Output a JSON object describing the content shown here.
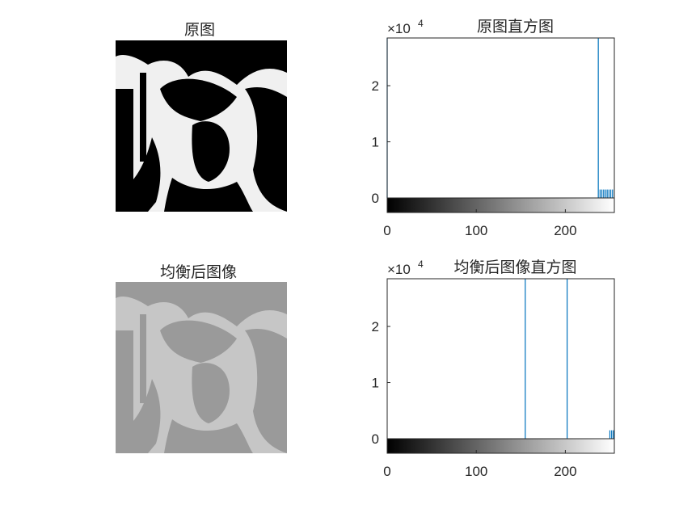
{
  "figure": {
    "title_original": "原图",
    "title_equalized": "均衡后图像"
  },
  "colors": {
    "bar": "#0072BD",
    "axis": "#262626",
    "image_dark": "#000000",
    "image_light": "#F0F0F0",
    "eq_dark": "#9A9A9A",
    "eq_light": "#C6C6C6"
  },
  "chart_data": [
    {
      "type": "bar",
      "title": "原图直方图",
      "xlabel": "",
      "ylabel": "",
      "y_exponent_label": "×10",
      "y_exponent": "4",
      "xlim": [
        0,
        255
      ],
      "ylim": [
        0,
        28500
      ],
      "xticks": [
        0,
        100,
        200
      ],
      "yticks": [
        0,
        1,
        2
      ],
      "grid": false,
      "colorbar": "gray",
      "x": [
        0,
        237,
        239,
        241,
        243,
        245,
        247,
        249,
        251,
        253
      ],
      "values": [
        28500,
        28500,
        1500,
        1500,
        1500,
        1500,
        1500,
        1500,
        1500,
        1500
      ]
    },
    {
      "type": "bar",
      "title": "均衡后图像直方图",
      "xlabel": "",
      "ylabel": "",
      "y_exponent_label": "×10",
      "y_exponent": "4",
      "xlim": [
        0,
        255
      ],
      "ylim": [
        0,
        28500
      ],
      "xticks": [
        0,
        100,
        200
      ],
      "yticks": [
        0,
        1,
        2
      ],
      "grid": false,
      "colorbar": "gray",
      "x": [
        155,
        202,
        250,
        252,
        254
      ],
      "values": [
        28500,
        28500,
        1500,
        1500,
        1500
      ]
    }
  ]
}
